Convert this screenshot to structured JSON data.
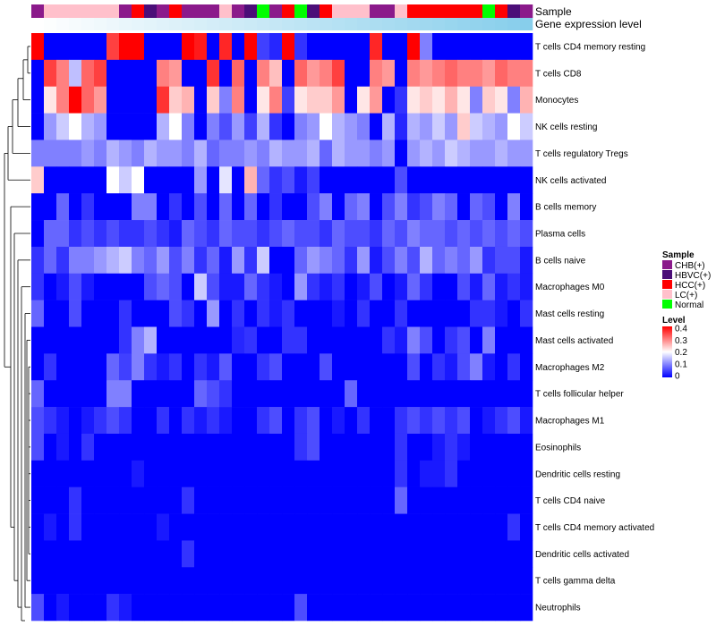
{
  "chart_data": {
    "type": "heatmap",
    "title": "",
    "annotation_labels": [
      "Sample",
      "Gene expression level"
    ],
    "rows": [
      "T cells CD4 memory resting",
      "T cells CD8",
      "Monocytes",
      "NK cells resting",
      "T cells regulatory  Tregs",
      "NK cells activated",
      "B cells memory",
      "Plasma cells",
      "B cells naive",
      "Macrophages M0",
      "Mast cells resting",
      "Mast cells activated",
      "Macrophages M2",
      "T cells follicular helper",
      "Macrophages M1",
      "Eosinophils",
      "Dendritic cells resting",
      "T cells CD4 naive",
      "T cells CD4 memory activated",
      "Dendritic cells activated",
      "T cells gamma delta",
      "Neutrophils"
    ],
    "sample_groups": [
      "CHB",
      "LC",
      "LC",
      "LC",
      "LC",
      "LC",
      "LC",
      "CHB",
      "HCC",
      "HBVC",
      "CHB",
      "HCC",
      "CHB",
      "CHB",
      "CHB",
      "LC",
      "CHB",
      "HBVC",
      "Normal",
      "CHB",
      "HCC",
      "Normal",
      "HBVC",
      "HCC",
      "LC",
      "LC",
      "LC",
      "CHB",
      "CHB",
      "LC",
      "HCC",
      "HCC",
      "HCC",
      "HCC",
      "HCC",
      "HCC",
      "Normal",
      "HCC",
      "HBVC",
      "CHB"
    ],
    "expression_level": [
      0.02,
      0.03,
      0.04,
      0.05,
      0.06,
      0.07,
      0.08,
      0.09,
      0.1,
      0.11,
      0.12,
      0.13,
      0.14,
      0.15,
      0.16,
      0.17,
      0.18,
      0.19,
      0.2,
      0.21,
      0.22,
      0.23,
      0.24,
      0.25,
      0.26,
      0.27,
      0.28,
      0.29,
      0.3,
      0.31,
      0.32,
      0.33,
      0.34,
      0.35,
      0.36,
      0.37,
      0.38,
      0.39,
      0.4,
      0.41
    ],
    "values": [
      [
        0.4,
        0,
        0,
        0,
        0,
        0,
        0.35,
        0.4,
        0.4,
        0,
        0,
        0,
        0.4,
        0.38,
        0,
        0.37,
        0,
        0.4,
        0.05,
        0.03,
        0.4,
        0.04,
        0,
        0,
        0,
        0,
        0,
        0.37,
        0,
        0,
        0.4,
        0.1,
        0,
        0,
        0,
        0,
        0,
        0,
        0,
        0
      ],
      [
        0,
        0.35,
        0.3,
        0.15,
        0.32,
        0.35,
        0,
        0,
        0,
        0,
        0.3,
        0.28,
        0,
        0,
        0.36,
        0,
        0.32,
        0,
        0.3,
        0.25,
        0,
        0.32,
        0.28,
        0.3,
        0.35,
        0,
        0,
        0.3,
        0.28,
        0,
        0.3,
        0.28,
        0.3,
        0.32,
        0.3,
        0.3,
        0.28,
        0.32,
        0.3,
        0.3
      ],
      [
        0,
        0.22,
        0.3,
        0.4,
        0.32,
        0.28,
        0,
        0,
        0,
        0,
        0.36,
        0.24,
        0.26,
        0,
        0.24,
        0.1,
        0.3,
        0,
        0.22,
        0.3,
        0.05,
        0.22,
        0.24,
        0.24,
        0.28,
        0,
        0.22,
        0.28,
        0,
        0.04,
        0.22,
        0.24,
        0.22,
        0.26,
        0.22,
        0.1,
        0.24,
        0.22,
        0.1,
        0.26
      ],
      [
        0,
        0.12,
        0.16,
        0.2,
        0.14,
        0.12,
        0,
        0,
        0,
        0,
        0.14,
        0.2,
        0.1,
        0,
        0.1,
        0.06,
        0.12,
        0.05,
        0.14,
        0.04,
        0,
        0.1,
        0.12,
        0.2,
        0.14,
        0.12,
        0.1,
        0,
        0.14,
        0.03,
        0.14,
        0.12,
        0.16,
        0.12,
        0.24,
        0.16,
        0.14,
        0.12,
        0.2,
        0.16
      ],
      [
        0.1,
        0.1,
        0.1,
        0.1,
        0.12,
        0.1,
        0.14,
        0.12,
        0.1,
        0.14,
        0.12,
        0.12,
        0.1,
        0.14,
        0.08,
        0.1,
        0.1,
        0.12,
        0.1,
        0.14,
        0.12,
        0.12,
        0.14,
        0.08,
        0.14,
        0.12,
        0.12,
        0.1,
        0.12,
        0,
        0.12,
        0.14,
        0.12,
        0.16,
        0.14,
        0.12,
        0.12,
        0.14,
        0.12,
        0.12
      ],
      [
        0.24,
        0,
        0,
        0,
        0,
        0,
        0.2,
        0.16,
        0.2,
        0,
        0,
        0,
        0,
        0.12,
        0,
        0.18,
        0,
        0.26,
        0.08,
        0.04,
        0.06,
        0.02,
        0.05,
        0,
        0,
        0,
        0,
        0,
        0,
        0.06,
        0,
        0,
        0,
        0,
        0,
        0,
        0,
        0,
        0,
        0
      ],
      [
        0,
        0,
        0.08,
        0,
        0.04,
        0,
        0,
        0,
        0.1,
        0.1,
        0,
        0.04,
        0,
        0.06,
        0,
        0.08,
        0,
        0.08,
        0,
        0.04,
        0,
        0,
        0.06,
        0.1,
        0,
        0.08,
        0.1,
        0,
        0.06,
        0.1,
        0.04,
        0.06,
        0.1,
        0.08,
        0,
        0.08,
        0.06,
        0,
        0.1,
        0
      ],
      [
        0,
        0.08,
        0.08,
        0.04,
        0.06,
        0.04,
        0.06,
        0.04,
        0.04,
        0.06,
        0.04,
        0.02,
        0.08,
        0.06,
        0.04,
        0.08,
        0.06,
        0.06,
        0.04,
        0.06,
        0.08,
        0.06,
        0.06,
        0.04,
        0.08,
        0.06,
        0.06,
        0.04,
        0.08,
        0.06,
        0.1,
        0.08,
        0.08,
        0.06,
        0.08,
        0.06,
        0.08,
        0.06,
        0.08,
        0.06
      ],
      [
        0.04,
        0.08,
        0.04,
        0.1,
        0.1,
        0.12,
        0.14,
        0.16,
        0.1,
        0.08,
        0.12,
        0.06,
        0.1,
        0.04,
        0.08,
        0.02,
        0.12,
        0.04,
        0.16,
        0,
        0,
        0.08,
        0.12,
        0.1,
        0.08,
        0.04,
        0.12,
        0.02,
        0.06,
        0.1,
        0.06,
        0.14,
        0.08,
        0.1,
        0.08,
        0.12,
        0.04,
        0.06,
        0.06,
        0.02
      ],
      [
        0.04,
        0,
        0.02,
        0.06,
        0.02,
        0,
        0,
        0,
        0,
        0.06,
        0.08,
        0.06,
        0,
        0.16,
        0.06,
        0.02,
        0.02,
        0.08,
        0.04,
        0.02,
        0,
        0.12,
        0.04,
        0.02,
        0.04,
        0,
        0.02,
        0.06,
        0,
        0.02,
        0.08,
        0.04,
        0,
        0,
        0.06,
        0.02,
        0.08,
        0.02,
        0.04,
        0.02
      ],
      [
        0.08,
        0,
        0,
        0.06,
        0,
        0,
        0,
        0.04,
        0,
        0,
        0,
        0.06,
        0.04,
        0,
        0.12,
        0,
        0.04,
        0,
        0.04,
        0.02,
        0.04,
        0,
        0,
        0,
        0.02,
        0,
        0.04,
        0,
        0,
        0.04,
        0,
        0,
        0,
        0,
        0,
        0.04,
        0.04,
        0.02,
        0,
        0.04
      ],
      [
        0,
        0,
        0,
        0,
        0,
        0,
        0,
        0.04,
        0.1,
        0.14,
        0,
        0,
        0,
        0,
        0,
        0,
        0.03,
        0.04,
        0,
        0,
        0.04,
        0.04,
        0,
        0,
        0,
        0,
        0,
        0,
        0.04,
        0.02,
        0.1,
        0.06,
        0,
        0.04,
        0.06,
        0,
        0.1,
        0,
        0,
        0
      ],
      [
        0,
        0.04,
        0,
        0,
        0,
        0,
        0.08,
        0.05,
        0.1,
        0.04,
        0.02,
        0.04,
        0,
        0.04,
        0.02,
        0.07,
        0,
        0,
        0.04,
        0.06,
        0,
        0,
        0,
        0.06,
        0,
        0,
        0,
        0,
        0,
        0,
        0.06,
        0,
        0.04,
        0.02,
        0.06,
        0.1,
        0.02,
        0,
        0.04,
        0
      ],
      [
        0.08,
        0,
        0,
        0,
        0,
        0,
        0.1,
        0.1,
        0,
        0,
        0,
        0,
        0,
        0.08,
        0.06,
        0.04,
        0,
        0,
        0,
        0,
        0,
        0,
        0,
        0,
        0,
        0.08,
        0,
        0,
        0,
        0,
        0,
        0,
        0,
        0,
        0,
        0,
        0,
        0,
        0,
        0
      ],
      [
        0.06,
        0.04,
        0.02,
        0,
        0.02,
        0.04,
        0.06,
        0.04,
        0,
        0,
        0.04,
        0,
        0.04,
        0.02,
        0.04,
        0.02,
        0,
        0,
        0.04,
        0.06,
        0,
        0.04,
        0.06,
        0,
        0.02,
        0,
        0.04,
        0,
        0,
        0.04,
        0.06,
        0.04,
        0.06,
        0.04,
        0.06,
        0,
        0.02,
        0.04,
        0.06,
        0.02
      ],
      [
        0.06,
        0,
        0.02,
        0,
        0.04,
        0,
        0,
        0,
        0,
        0,
        0,
        0,
        0,
        0,
        0,
        0,
        0,
        0,
        0,
        0,
        0,
        0.04,
        0.06,
        0,
        0,
        0,
        0,
        0,
        0,
        0.04,
        0,
        0,
        0.02,
        0.04,
        0.02,
        0,
        0,
        0,
        0,
        0
      ],
      [
        0,
        0,
        0,
        0,
        0,
        0,
        0,
        0,
        0.02,
        0,
        0,
        0,
        0,
        0,
        0,
        0,
        0,
        0,
        0,
        0,
        0,
        0,
        0,
        0,
        0,
        0,
        0,
        0,
        0,
        0.04,
        0,
        0.02,
        0.02,
        0.04,
        0,
        0,
        0,
        0,
        0,
        0
      ],
      [
        0,
        0,
        0,
        0.04,
        0,
        0,
        0,
        0,
        0,
        0,
        0,
        0,
        0.04,
        0,
        0,
        0,
        0,
        0,
        0,
        0,
        0,
        0,
        0,
        0,
        0,
        0,
        0,
        0,
        0,
        0.08,
        0,
        0,
        0,
        0,
        0,
        0,
        0,
        0,
        0,
        0
      ],
      [
        0,
        0.02,
        0,
        0.04,
        0,
        0,
        0,
        0,
        0,
        0,
        0.02,
        0,
        0,
        0,
        0,
        0,
        0,
        0,
        0,
        0,
        0,
        0,
        0,
        0,
        0,
        0,
        0,
        0,
        0,
        0,
        0,
        0,
        0,
        0,
        0,
        0,
        0,
        0,
        0.04,
        0
      ],
      [
        0,
        0,
        0,
        0,
        0,
        0,
        0,
        0,
        0,
        0,
        0,
        0,
        0.04,
        0,
        0,
        0,
        0,
        0,
        0,
        0,
        0,
        0,
        0,
        0,
        0,
        0,
        0,
        0,
        0,
        0,
        0,
        0,
        0,
        0,
        0,
        0,
        0,
        0,
        0,
        0
      ],
      [
        0,
        0,
        0,
        0,
        0,
        0,
        0,
        0,
        0,
        0,
        0,
        0,
        0,
        0,
        0,
        0,
        0,
        0,
        0,
        0,
        0,
        0,
        0,
        0,
        0,
        0,
        0,
        0,
        0,
        0,
        0,
        0,
        0,
        0,
        0,
        0,
        0,
        0,
        0,
        0
      ],
      [
        0.06,
        0,
        0.02,
        0,
        0,
        0,
        0.04,
        0.02,
        0,
        0,
        0,
        0,
        0,
        0,
        0,
        0,
        0,
        0,
        0,
        0,
        0,
        0.06,
        0,
        0,
        0,
        0,
        0,
        0,
        0,
        0,
        0,
        0,
        0,
        0,
        0,
        0,
        0,
        0,
        0,
        0
      ]
    ],
    "legends": {
      "sample": {
        "title": "Sample",
        "entries": [
          {
            "key": "CHB",
            "label": "CHB(+)",
            "color": "#8B1A8B"
          },
          {
            "key": "HBVC",
            "label": "HBVC(+)",
            "color": "#4B0E78"
          },
          {
            "key": "HCC",
            "label": "HCC(+)",
            "color": "#FF0000"
          },
          {
            "key": "LC",
            "label": "LC(+)",
            "color": "#FFC0CB"
          },
          {
            "key": "Normal",
            "label": "Normal",
            "color": "#00FF00"
          }
        ]
      },
      "level": {
        "title": "Level",
        "ticks": [
          "0.4",
          "0.3",
          "0.2",
          "0.1",
          "0"
        ],
        "range": [
          0,
          0.4
        ]
      }
    },
    "colors": {
      "low": "#0000FF",
      "mid": "#FFFFFF",
      "high": "#FF0000",
      "expr_low": "#FFFFFF",
      "expr_high": "#87CEEB"
    }
  }
}
